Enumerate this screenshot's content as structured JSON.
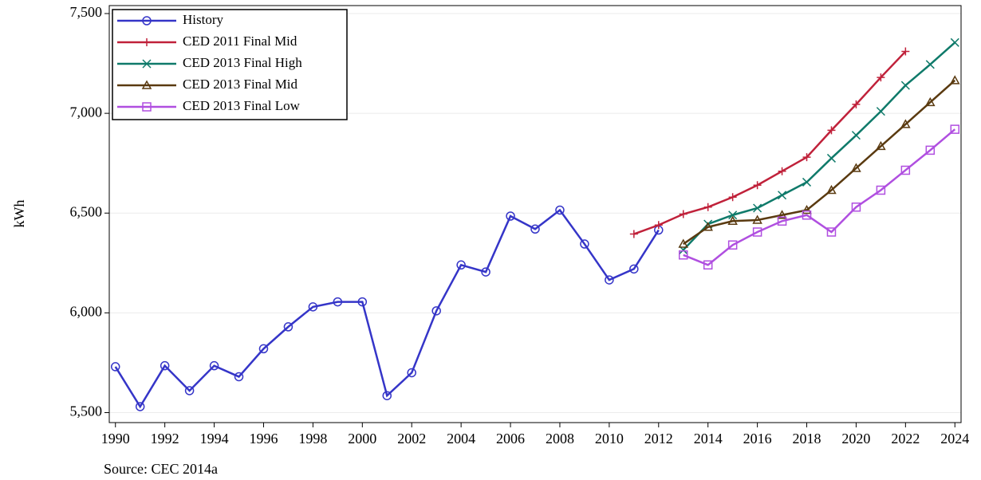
{
  "chart_data": {
    "type": "line",
    "ylabel": "kWh",
    "source": "Source: CEC 2014a",
    "x": [
      1990,
      1991,
      1992,
      1993,
      1994,
      1995,
      1996,
      1997,
      1998,
      1999,
      2000,
      2001,
      2002,
      2003,
      2004,
      2005,
      2006,
      2007,
      2008,
      2009,
      2010,
      2011,
      2012,
      2013,
      2014,
      2015,
      2016,
      2017,
      2018,
      2019,
      2020,
      2021,
      2022,
      2023,
      2024
    ],
    "series": [
      {
        "name": "History",
        "color": "#3535c8",
        "marker": "circle",
        "values": [
          5730,
          5530,
          5735,
          5610,
          5735,
          5680,
          5820,
          5930,
          6030,
          6055,
          6055,
          5585,
          5700,
          6010,
          6240,
          6205,
          6485,
          6420,
          6515,
          6345,
          6165,
          6220,
          6415,
          null,
          null,
          null,
          null,
          null,
          null,
          null,
          null,
          null,
          null,
          null,
          null
        ]
      },
      {
        "name": "CED 2011 Final Mid",
        "color": "#c0213a",
        "marker": "plus",
        "values": [
          null,
          null,
          null,
          null,
          null,
          null,
          null,
          null,
          null,
          null,
          null,
          null,
          null,
          null,
          null,
          null,
          null,
          null,
          null,
          null,
          null,
          6395,
          6440,
          6495,
          6530,
          6580,
          6640,
          6710,
          6780,
          6915,
          7045,
          7180,
          7310,
          null,
          null
        ]
      },
      {
        "name": "CED 2013 Final High",
        "color": "#0f7a6a",
        "marker": "x",
        "values": [
          null,
          null,
          null,
          null,
          null,
          null,
          null,
          null,
          null,
          null,
          null,
          null,
          null,
          null,
          null,
          null,
          null,
          null,
          null,
          null,
          null,
          null,
          null,
          6315,
          6445,
          6490,
          6525,
          6590,
          6655,
          6775,
          6890,
          7010,
          7140,
          7245,
          7355
        ]
      },
      {
        "name": "CED 2013 Final Mid",
        "color": "#5a3a10",
        "marker": "triangle",
        "values": [
          null,
          null,
          null,
          null,
          null,
          null,
          null,
          null,
          null,
          null,
          null,
          null,
          null,
          null,
          null,
          null,
          null,
          null,
          null,
          null,
          null,
          null,
          null,
          6345,
          6430,
          6460,
          6465,
          6490,
          6515,
          6615,
          6725,
          6835,
          6945,
          7055,
          7165
        ]
      },
      {
        "name": "CED 2013 Final Low",
        "color": "#b04fe0",
        "marker": "square",
        "values": [
          null,
          null,
          null,
          null,
          null,
          null,
          null,
          null,
          null,
          null,
          null,
          null,
          null,
          null,
          null,
          null,
          null,
          null,
          null,
          null,
          null,
          null,
          null,
          6290,
          6240,
          6340,
          6405,
          6460,
          6490,
          6405,
          6530,
          6615,
          6715,
          6815,
          6920
        ]
      }
    ],
    "xlim": [
      1989.75,
      2024.25
    ],
    "xticks": [
      1990,
      1992,
      1994,
      1996,
      1998,
      2000,
      2002,
      2004,
      2006,
      2008,
      2010,
      2012,
      2014,
      2016,
      2018,
      2020,
      2022,
      2024
    ],
    "ylim": [
      5450,
      7540
    ],
    "yticks": [
      {
        "value": 5500,
        "label": "5,500"
      },
      {
        "value": 6000,
        "label": "6,000"
      },
      {
        "value": 6500,
        "label": "6,500"
      },
      {
        "value": 7000,
        "label": "7,000"
      },
      {
        "value": 7500,
        "label": "7,500"
      }
    ],
    "grid": true,
    "legend": "upper-left"
  }
}
